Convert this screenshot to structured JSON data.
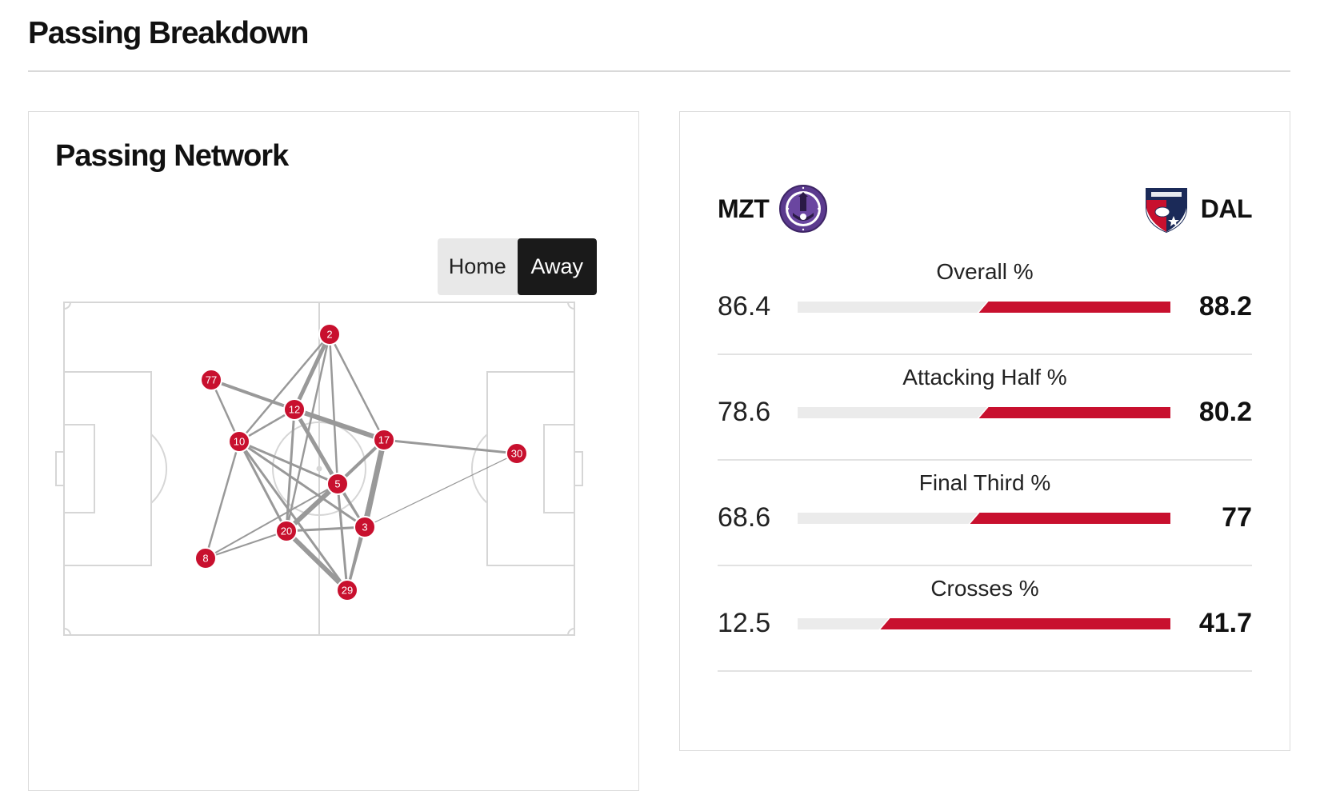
{
  "page": {
    "title": "Passing Breakdown"
  },
  "network": {
    "title": "Passing Network",
    "toggle": {
      "home_label": "Home",
      "away_label": "Away",
      "selected": "Away"
    },
    "players": [
      {
        "number": "2"
      },
      {
        "number": "77"
      },
      {
        "number": "12"
      },
      {
        "number": "10"
      },
      {
        "number": "17"
      },
      {
        "number": "30"
      },
      {
        "number": "5"
      },
      {
        "number": "20"
      },
      {
        "number": "3"
      },
      {
        "number": "8"
      },
      {
        "number": "29"
      }
    ],
    "colors": {
      "node": "#c8102e",
      "link": "#999999",
      "lines": "#d6d6d6"
    }
  },
  "stats": {
    "home_team": {
      "abbr": "MZT",
      "logo": "mazatlan-fc-crest-icon"
    },
    "away_team": {
      "abbr": "DAL",
      "logo": "fc-dallas-crest-icon"
    },
    "colors": {
      "home_bar": "#ebebeb",
      "away_bar": "#c8102e"
    },
    "rows": [
      {
        "label": "Overall %",
        "home": "86.4",
        "away": "88.2"
      },
      {
        "label": "Attacking Half %",
        "home": "78.6",
        "away": "80.2"
      },
      {
        "label": "Final Third %",
        "home": "68.6",
        "away": "77"
      },
      {
        "label": "Crosses %",
        "home": "12.5",
        "away": "41.7"
      }
    ]
  }
}
